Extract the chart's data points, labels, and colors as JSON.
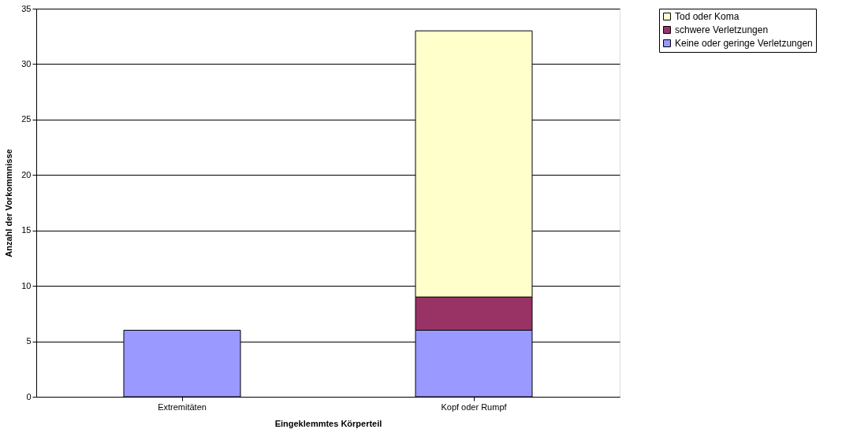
{
  "chart_data": {
    "type": "bar",
    "stacked": true,
    "xlabel": "Eingeklemmtes Körperteil",
    "ylabel": "Anzahl der Vorkommnisse",
    "categories": [
      "Extremitäten",
      "Kopf oder Rumpf"
    ],
    "series": [
      {
        "name": "Keine oder geringe Verletzungen",
        "color": "#9999ff",
        "values": [
          6,
          6
        ]
      },
      {
        "name": "schwere Verletzungen",
        "color": "#993366",
        "values": [
          null,
          3
        ]
      },
      {
        "name": "Tod oder Koma",
        "color": "#ffffcc",
        "values": [
          null,
          24
        ]
      }
    ],
    "ylim": [
      0,
      35
    ],
    "yticks": [
      0,
      5,
      10,
      15,
      20,
      25,
      30,
      35
    ],
    "grid": "y",
    "legend": "top right"
  }
}
